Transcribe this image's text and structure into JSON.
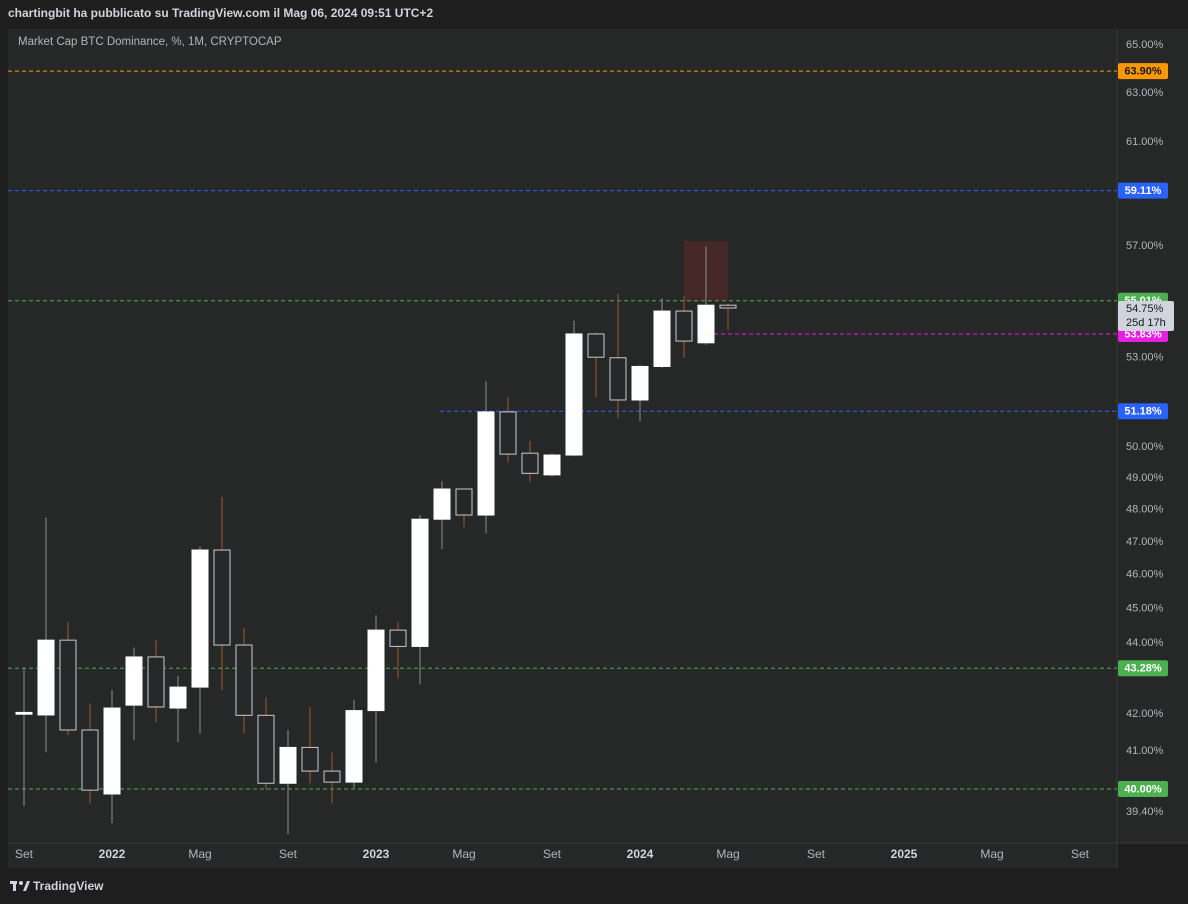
{
  "header": "chartingbit ha pubblicato su TradingView.com il Mag 06, 2024 09:51 UTC+2",
  "footer": "TradingView",
  "chart_data": {
    "type": "candlestick",
    "title": "Market Cap BTC Dominance, %, 1M, CRYPTOCAP",
    "categories": [
      "Set",
      null,
      null,
      null,
      "2022",
      null,
      null,
      null,
      "Mag",
      null,
      null,
      null,
      "Set",
      null,
      null,
      null,
      "2023",
      null,
      null,
      null,
      "Mag",
      null,
      null,
      null,
      "Set",
      null,
      null,
      null,
      "2024",
      null,
      null,
      null,
      "Mag",
      null,
      null,
      null,
      "Set",
      null,
      null,
      null,
      "2025",
      null,
      null,
      null,
      "Mag",
      null,
      null,
      null,
      "Set"
    ],
    "open": [
      42.0,
      41.98,
      44.08,
      41.57,
      39.87,
      42.25,
      43.6,
      42.17,
      42.75,
      46.75,
      43.94,
      41.97,
      40.15,
      41.1,
      40.47,
      40.18,
      42.1,
      44.37,
      43.9,
      47.7,
      48.65,
      47.83,
      51.16,
      49.8,
      49.1,
      49.74,
      53.83,
      53.0,
      51.56,
      52.7,
      54.64,
      53.52,
      54.85,
      null,
      null,
      null,
      null,
      null,
      null,
      null,
      null,
      null,
      null,
      null,
      null,
      null,
      null,
      null,
      null
    ],
    "high": [
      43.3,
      47.75,
      44.6,
      42.3,
      42.67,
      43.87,
      44.08,
      43.06,
      46.86,
      48.4,
      44.43,
      42.47,
      41.57,
      42.2,
      40.97,
      42.4,
      44.8,
      44.6,
      47.83,
      48.9,
      48.65,
      52.2,
      51.65,
      50.2,
      49.8,
      54.3,
      53.87,
      55.25,
      52.75,
      55.1,
      55.18,
      57.0,
      54.9,
      null,
      null,
      null,
      null,
      null,
      null,
      null,
      null,
      null,
      null,
      null,
      null,
      null,
      null,
      null,
      null
    ],
    "low": [
      39.56,
      40.97,
      41.43,
      39.63,
      39.12,
      41.29,
      41.78,
      41.24,
      41.48,
      42.67,
      41.48,
      39.97,
      38.84,
      40.15,
      39.63,
      40.02,
      40.7,
      43.0,
      42.83,
      46.78,
      47.46,
      47.27,
      49.5,
      48.87,
      49.05,
      49.7,
      51.65,
      50.95,
      50.85,
      52.65,
      53.0,
      53.45,
      53.97,
      null,
      null,
      null,
      null,
      null,
      null,
      null,
      null,
      null,
      null,
      null,
      null,
      null,
      null,
      null,
      null
    ],
    "close": [
      42.05,
      44.08,
      41.57,
      39.97,
      42.17,
      43.6,
      42.2,
      42.75,
      46.75,
      43.94,
      41.97,
      40.15,
      41.1,
      40.47,
      40.18,
      42.1,
      44.37,
      43.9,
      47.7,
      48.65,
      47.83,
      51.16,
      49.77,
      49.15,
      49.74,
      53.83,
      53.02,
      51.56,
      52.7,
      54.64,
      53.58,
      54.85,
      54.75,
      null,
      null,
      null,
      null,
      null,
      null,
      null,
      null,
      null,
      null,
      null,
      null,
      null,
      null,
      null,
      null
    ],
    "up_color": "#ffffff",
    "down_color": "#c8cbd2",
    "up_wick_color": "#8c8c8c",
    "down_wick_color": "#a0592c",
    "log_scale": true,
    "grid": false,
    "ylim": [
      38.64,
      65.64
    ],
    "yticks": [
      {
        "value": 65,
        "label": "65.00%"
      },
      {
        "value": 63,
        "label": "63.00%"
      },
      {
        "value": 61,
        "label": "61.00%"
      },
      {
        "value": 57,
        "label": "57.00%"
      },
      {
        "value": 53,
        "label": "53.00%"
      },
      {
        "value": 50,
        "label": "50.00%"
      },
      {
        "value": 49,
        "label": "49.00%"
      },
      {
        "value": 48,
        "label": "48.00%"
      },
      {
        "value": 47,
        "label": "47.00%"
      },
      {
        "value": 46,
        "label": "46.00%"
      },
      {
        "value": 45,
        "label": "45.00%"
      },
      {
        "value": 44,
        "label": "44.00%"
      },
      {
        "value": 42,
        "label": "42.00%"
      },
      {
        "value": 41,
        "label": "41.00%"
      },
      {
        "value": 39.4,
        "label": "39.40%"
      }
    ],
    "hlines": [
      {
        "value": 63.9,
        "label": "63.90%",
        "color": "#ff9800",
        "label_color": "#131722"
      },
      {
        "value": 59.11,
        "label": "59.11%",
        "color": "#2962ff",
        "label_color": "#ffffff"
      },
      {
        "value": 55.01,
        "label": "55.01%",
        "color": "#4caf50",
        "label_color": "#ffffff"
      },
      {
        "value": 53.83,
        "label": "53.83%",
        "color": "#e91ee3",
        "label_color": "#ffffff"
      },
      {
        "value": 51.18,
        "label": "51.18%",
        "color": "#2962ff",
        "label_color": "#ffffff"
      },
      {
        "value": 43.28,
        "label": "43.28%",
        "color": "#4caf50",
        "label_color": "#ffffff"
      },
      {
        "value": 40.0,
        "label": "40.00%",
        "color": "#4caf50",
        "label_color": "#ffffff"
      }
    ],
    "last_price": {
      "value": 54.75,
      "label": "54.75%"
    },
    "countdown": "25d 17h"
  }
}
